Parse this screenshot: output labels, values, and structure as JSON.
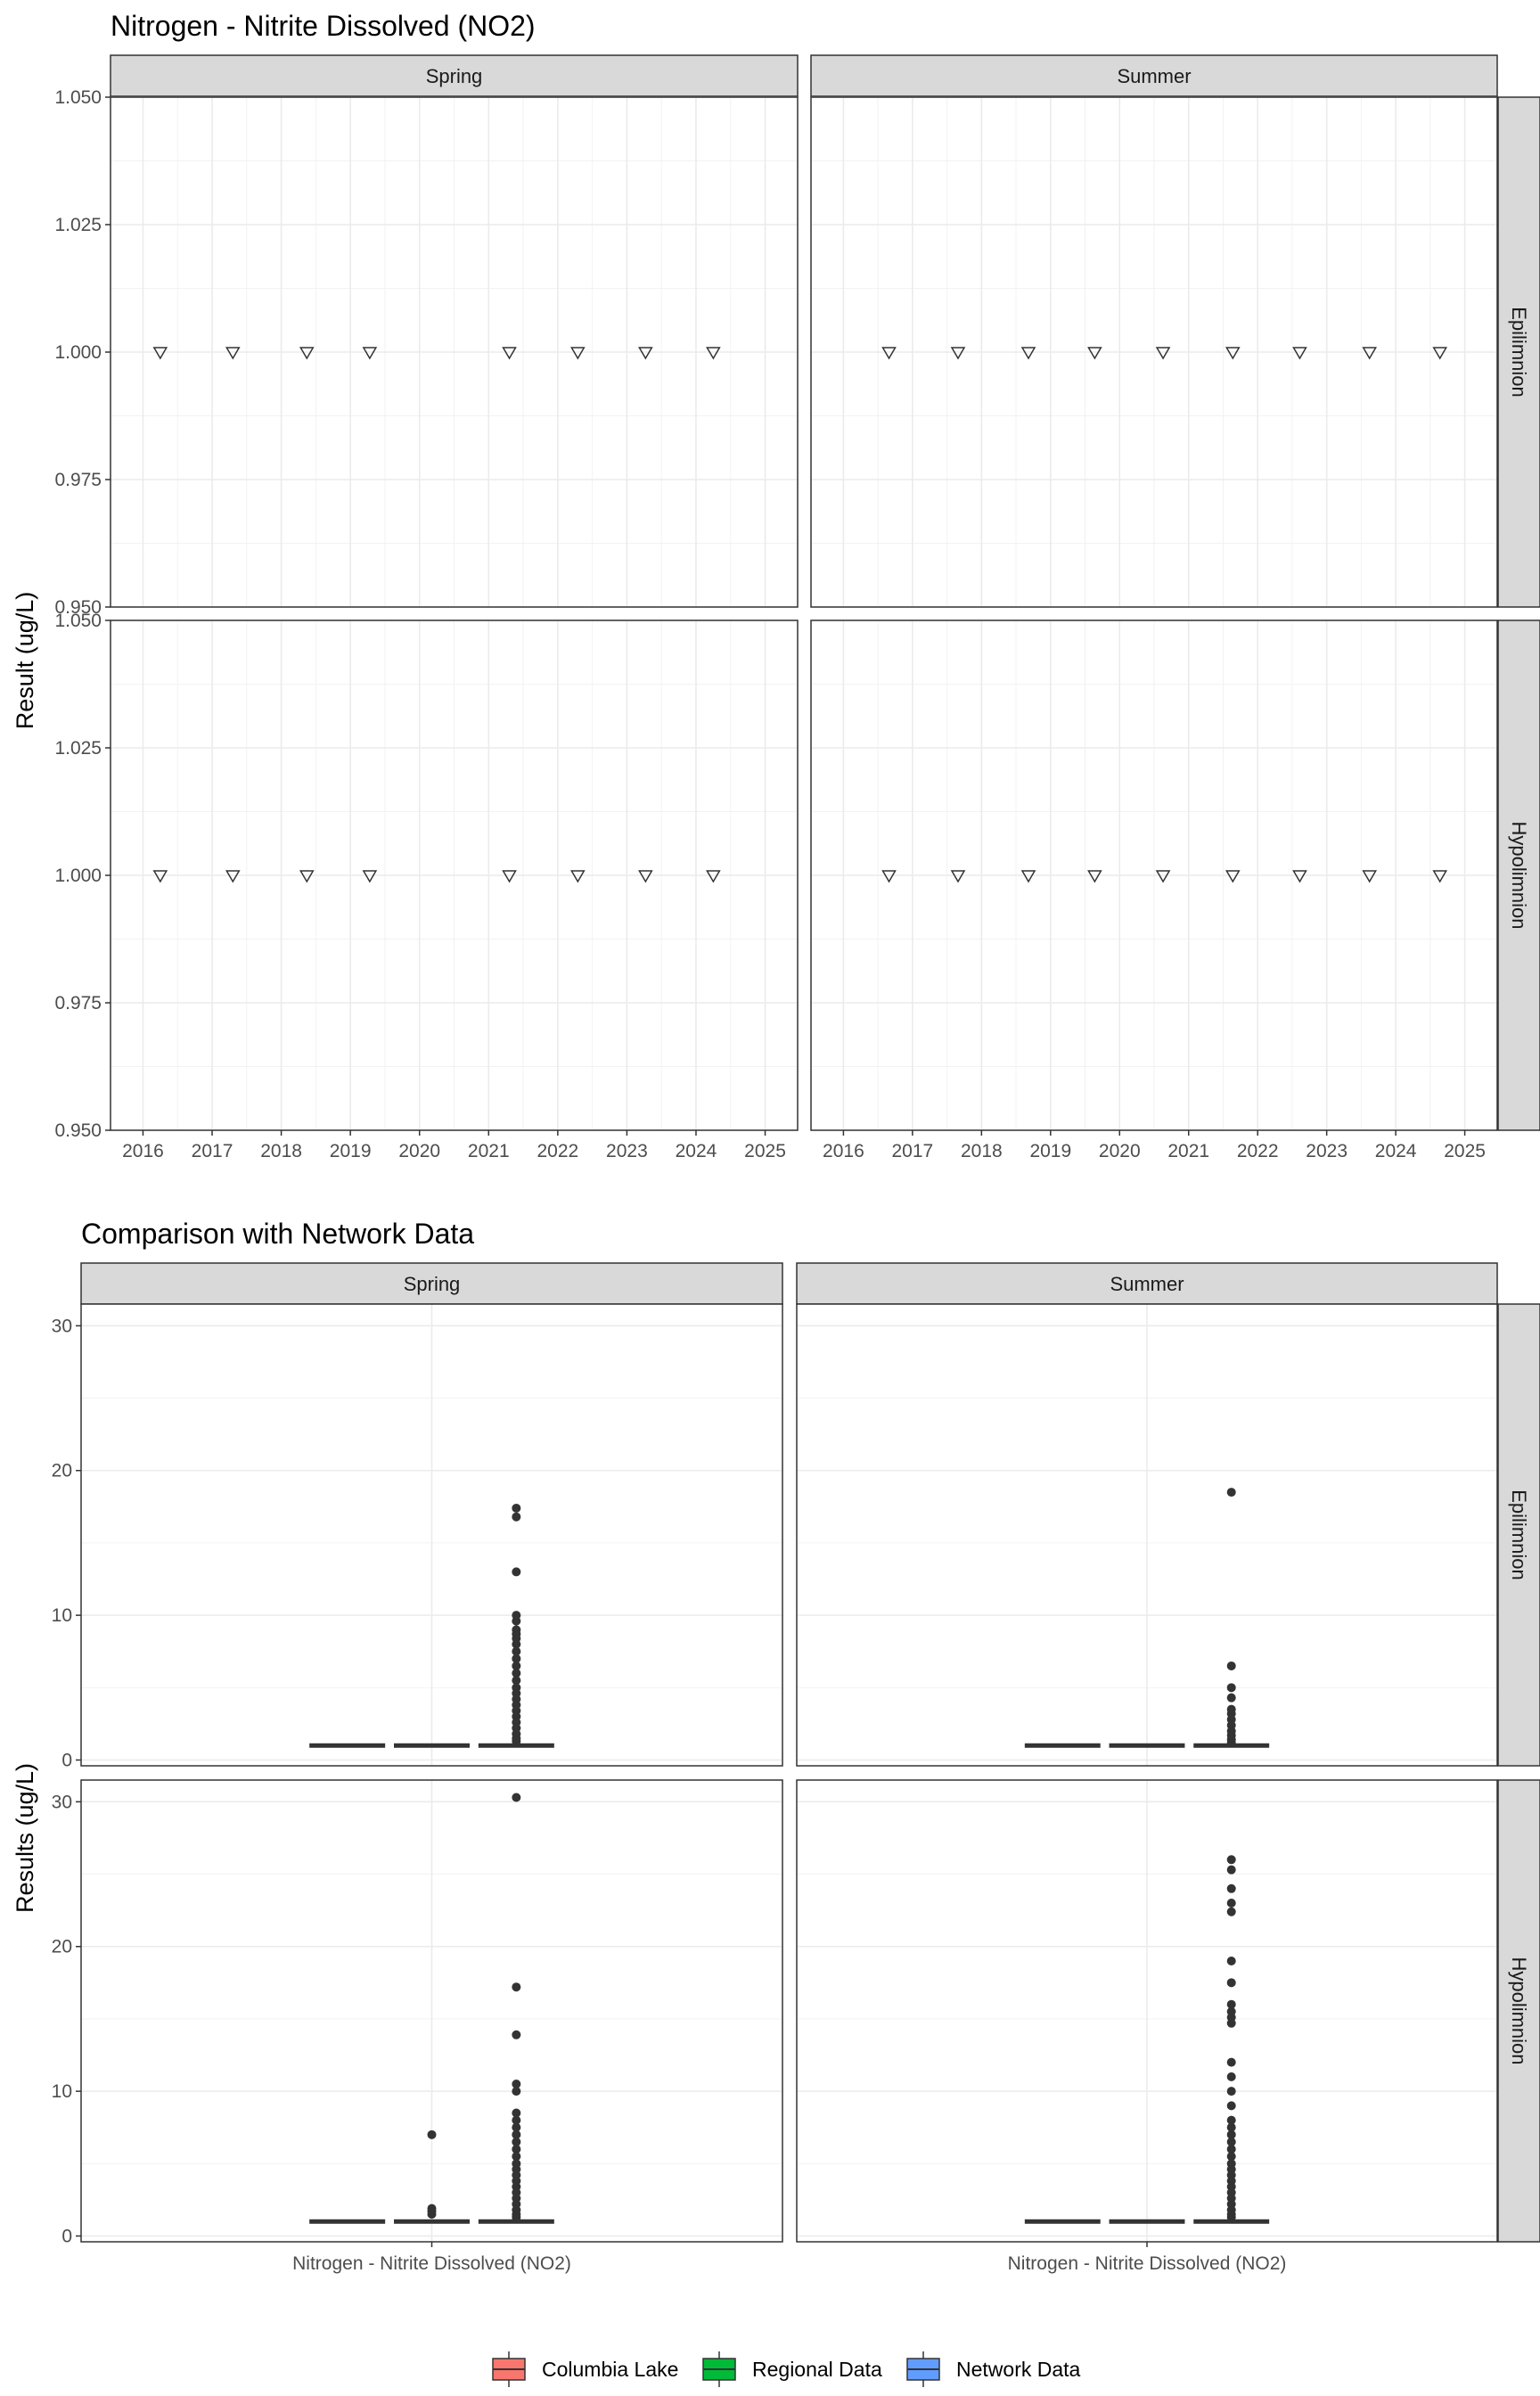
{
  "chart_data": [
    {
      "type": "scatter",
      "title": "Nitrogen - Nitrite Dissolved (NO2)",
      "ylabel": "Result (ug/L)",
      "xlabel": "",
      "x_ticks": [
        "2016",
        "2017",
        "2018",
        "2019",
        "2020",
        "2021",
        "2022",
        "2023",
        "2024",
        "2025"
      ],
      "x_range": [
        2015.53,
        2025.47
      ],
      "ylim": [
        0.95,
        1.05
      ],
      "y_ticks": [
        "0.950",
        "0.975",
        "1.000",
        "1.025",
        "1.050"
      ],
      "y_values": [
        0.95,
        0.975,
        1.0,
        1.025,
        1.05
      ],
      "col_facets": [
        "Spring",
        "Summer"
      ],
      "row_facets": [
        "Epilimnion",
        "Hypolimnion"
      ],
      "grid": true,
      "marker": "open-down-triangle",
      "series": [
        {
          "season": "Spring",
          "x": [
            2016.25,
            2017.3,
            2018.37,
            2019.28,
            2021.3,
            2022.29,
            2023.27,
            2024.25
          ],
          "y": [
            1.0,
            1.0,
            1.0,
            1.0,
            1.0,
            1.0,
            1.0,
            1.0
          ]
        },
        {
          "season": "Summer",
          "x": [
            2016.66,
            2017.66,
            2018.68,
            2019.64,
            2020.63,
            2021.64,
            2022.61,
            2023.62,
            2024.64
          ],
          "y": [
            1.0,
            1.0,
            1.0,
            1.0,
            1.0,
            1.0,
            1.0,
            1.0,
            1.0
          ]
        }
      ]
    },
    {
      "type": "box",
      "title": "Comparison with Network Data",
      "ylabel": "Results (ug/L)",
      "category": "Nitrogen - Nitrite Dissolved (NO2)",
      "col_facets": [
        "Spring",
        "Summer"
      ],
      "row_facets": [
        "Epilimnion",
        "Hypolimnion"
      ],
      "ylim": [
        -0.4,
        31.5
      ],
      "y_ticks": [
        0,
        10,
        20,
        30
      ],
      "grid": true,
      "legend": {
        "position": "bottom",
        "items": [
          {
            "name": "Columbia Lake",
            "color": "#F8766D"
          },
          {
            "name": "Regional Data",
            "color": "#00BA38"
          },
          {
            "name": "Network Data",
            "color": "#619CFF"
          }
        ]
      },
      "panels": [
        {
          "season": "Spring",
          "layer": "Epilimnion",
          "boxes": [
            {
              "group": "Columbia Lake",
              "median": 1,
              "outliers": []
            },
            {
              "group": "Regional Data",
              "median": 1,
              "outliers": []
            },
            {
              "group": "Network Data",
              "median": 1,
              "outliers": [
                17.4,
                16.8,
                13.0,
                10.0,
                9.6,
                9.0,
                8.7,
                8.4,
                8.0,
                7.5,
                7.0,
                6.5,
                6.0,
                5.5,
                5.0,
                4.6,
                4.2,
                3.8,
                3.4,
                3.0,
                2.6,
                2.2,
                1.8,
                1.5,
                1.3
              ]
            }
          ]
        },
        {
          "season": "Summer",
          "layer": "Epilimnion",
          "boxes": [
            {
              "group": "Columbia Lake",
              "median": 1,
              "outliers": []
            },
            {
              "group": "Regional Data",
              "median": 1,
              "outliers": []
            },
            {
              "group": "Network Data",
              "median": 1,
              "outliers": [
                18.5,
                6.5,
                5.0,
                4.3,
                3.5,
                3.2,
                2.8,
                2.4,
                2.0,
                1.7,
                1.4,
                1.2
              ]
            }
          ]
        },
        {
          "season": "Spring",
          "layer": "Hypolimnion",
          "boxes": [
            {
              "group": "Columbia Lake",
              "median": 1,
              "outliers": []
            },
            {
              "group": "Regional Data",
              "median": 1,
              "outliers": [
                7.0,
                1.9,
                1.7,
                1.5
              ]
            },
            {
              "group": "Network Data",
              "median": 1,
              "outliers": [
                30.3,
                17.2,
                13.9,
                10.5,
                10.0,
                8.5,
                8.0,
                7.5,
                7.0,
                6.5,
                6.0,
                5.5,
                5.0,
                4.6,
                4.2,
                3.8,
                3.4,
                3.0,
                2.6,
                2.2,
                1.8,
                1.5,
                1.3
              ]
            }
          ]
        },
        {
          "season": "Summer",
          "layer": "Hypolimnion",
          "boxes": [
            {
              "group": "Columbia Lake",
              "median": 1,
              "outliers": []
            },
            {
              "group": "Regional Data",
              "median": 1,
              "outliers": []
            },
            {
              "group": "Network Data",
              "median": 1,
              "outliers": [
                26.0,
                25.3,
                24.0,
                23.0,
                22.4,
                19.0,
                17.5,
                16.0,
                15.5,
                15.1,
                14.7,
                12.0,
                11.0,
                10.0,
                9.0,
                8.0,
                7.5,
                7.0,
                6.5,
                6.0,
                5.5,
                5.0,
                4.6,
                4.2,
                3.8,
                3.4,
                3.0,
                2.6,
                2.2,
                1.8,
                1.5,
                1.3
              ]
            }
          ]
        }
      ]
    }
  ]
}
